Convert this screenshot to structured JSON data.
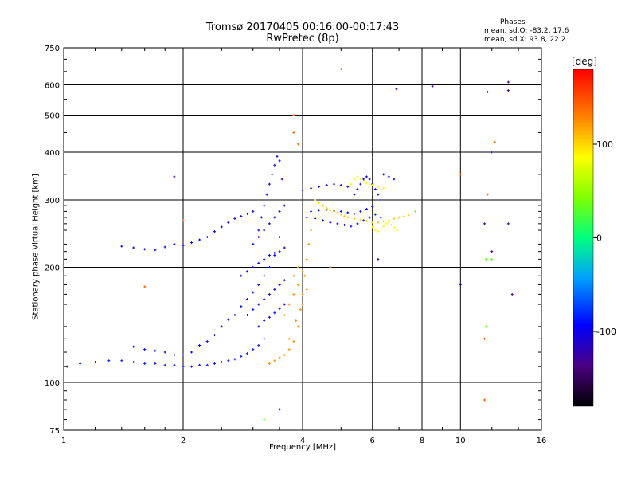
{
  "header": {
    "title_line1": "Tromsø 20170405 00:16:00-00:17:43",
    "title_line2": "RwPretec (8p)"
  },
  "phases": {
    "title": "Phases",
    "line1": "mean, sd,O: -83.2, 17.6",
    "line2": "mean, sd,X:  93.8, 22.2"
  },
  "colorbar": {
    "title": "[deg]",
    "range": [
      -180,
      180
    ],
    "ticks": [
      {
        "value": 100,
        "label": "100"
      },
      {
        "value": 0,
        "label": "0"
      },
      {
        "value": -100,
        "label": "-100"
      }
    ]
  },
  "chart_data": {
    "type": "scatter",
    "xlabel": "Frequency [MHz]",
    "ylabel": "Stationary phase Virtual Height [km]",
    "xscale": "log",
    "yscale": "log",
    "xlim": [
      1,
      16
    ],
    "ylim": [
      75,
      750
    ],
    "grid": true,
    "xticks": [
      1,
      2,
      4,
      6,
      8,
      10,
      16
    ],
    "xtick_labels": [
      "1",
      "2",
      "4",
      "6",
      "8",
      "10",
      "16"
    ],
    "yticks": [
      75,
      100,
      200,
      300,
      400,
      500,
      600,
      750
    ],
    "ytick_labels": [
      "75",
      "100",
      "200",
      "300",
      "400",
      "500",
      "600",
      "750"
    ],
    "series": [
      {
        "phase": -95,
        "points": [
          [
            1.02,
            110
          ],
          [
            1.1,
            112
          ],
          [
            1.2,
            113
          ],
          [
            1.3,
            114
          ],
          [
            1.4,
            114
          ],
          [
            1.5,
            113
          ],
          [
            1.6,
            112
          ],
          [
            1.7,
            112
          ],
          [
            1.8,
            111
          ],
          [
            1.9,
            111
          ],
          [
            2.0,
            110
          ],
          [
            2.1,
            110
          ],
          [
            2.2,
            111
          ],
          [
            2.3,
            111
          ],
          [
            2.4,
            112
          ],
          [
            2.5,
            113
          ],
          [
            2.6,
            114
          ],
          [
            2.7,
            115
          ],
          [
            2.8,
            117
          ],
          [
            2.9,
            119
          ],
          [
            3.0,
            122
          ],
          [
            3.1,
            125
          ],
          [
            3.2,
            130
          ]
        ]
      },
      {
        "phase": -100,
        "points": [
          [
            1.5,
            124
          ],
          [
            1.6,
            122
          ],
          [
            1.7,
            121
          ],
          [
            1.8,
            120
          ],
          [
            1.9,
            118
          ],
          [
            2.0,
            118
          ],
          [
            2.1,
            120
          ],
          [
            2.2,
            125
          ],
          [
            2.3,
            128
          ],
          [
            2.4,
            133
          ],
          [
            2.5,
            140
          ],
          [
            2.6,
            146
          ],
          [
            2.7,
            150
          ],
          [
            2.8,
            158
          ],
          [
            2.9,
            165
          ],
          [
            3.0,
            172
          ],
          [
            3.1,
            180
          ],
          [
            3.2,
            190
          ],
          [
            3.3,
            200
          ],
          [
            3.4,
            215
          ],
          [
            3.5,
            240
          ]
        ]
      },
      {
        "phase": -105,
        "points": [
          [
            1.4,
            227
          ],
          [
            1.5,
            225
          ],
          [
            1.6,
            223
          ],
          [
            1.7,
            222
          ],
          [
            1.8,
            226
          ],
          [
            1.9,
            230
          ],
          [
            2.0,
            228
          ],
          [
            2.1,
            232
          ],
          [
            2.2,
            236
          ],
          [
            2.3,
            240
          ],
          [
            2.4,
            248
          ],
          [
            2.5,
            255
          ],
          [
            2.6,
            262
          ],
          [
            2.7,
            268
          ],
          [
            2.8,
            272
          ],
          [
            2.9,
            276
          ],
          [
            3.0,
            280
          ]
        ]
      },
      {
        "phase": -110,
        "points": [
          [
            3.1,
            250
          ],
          [
            3.15,
            270
          ],
          [
            3.2,
            290
          ],
          [
            3.25,
            310
          ],
          [
            3.3,
            330
          ],
          [
            3.35,
            350
          ],
          [
            3.4,
            370
          ],
          [
            3.45,
            390
          ],
          [
            3.5,
            380
          ],
          [
            3.55,
            340
          ]
        ]
      },
      {
        "phase": -105,
        "points": [
          [
            2.8,
            190
          ],
          [
            2.9,
            195
          ],
          [
            3.0,
            200
          ],
          [
            3.1,
            205
          ],
          [
            3.2,
            210
          ],
          [
            3.3,
            215
          ],
          [
            3.4,
            218
          ],
          [
            3.5,
            220
          ],
          [
            3.6,
            225
          ],
          [
            2.9,
            150
          ],
          [
            3.0,
            155
          ],
          [
            3.1,
            160
          ],
          [
            3.2,
            165
          ],
          [
            3.3,
            170
          ],
          [
            3.4,
            175
          ],
          [
            3.5,
            180
          ],
          [
            3.6,
            185
          ],
          [
            3.1,
            140
          ],
          [
            3.2,
            145
          ],
          [
            3.3,
            148
          ],
          [
            3.4,
            152
          ],
          [
            3.5,
            156
          ],
          [
            3.6,
            160
          ],
          [
            3.0,
            230
          ],
          [
            3.1,
            240
          ],
          [
            3.2,
            250
          ],
          [
            3.3,
            260
          ],
          [
            3.4,
            270
          ],
          [
            3.5,
            280
          ],
          [
            3.6,
            290
          ]
        ]
      },
      {
        "phase": -100,
        "points": [
          [
            4.1,
            270
          ],
          [
            4.3,
            268
          ],
          [
            4.5,
            265
          ],
          [
            4.7,
            262
          ],
          [
            4.9,
            260
          ],
          [
            5.1,
            258
          ],
          [
            5.3,
            256
          ],
          [
            5.5,
            260
          ],
          [
            5.7,
            265
          ],
          [
            5.9,
            270
          ],
          [
            6.1,
            275
          ],
          [
            6.3,
            270
          ],
          [
            4.2,
            280
          ],
          [
            4.4,
            282
          ],
          [
            4.6,
            283
          ],
          [
            4.8,
            282
          ],
          [
            5.0,
            280
          ],
          [
            5.2,
            278
          ],
          [
            5.4,
            276
          ],
          [
            5.6,
            280
          ],
          [
            5.8,
            284
          ],
          [
            6.0,
            288
          ]
        ]
      },
      {
        "phase": -110,
        "points": [
          [
            5.4,
            310
          ],
          [
            5.5,
            320
          ],
          [
            5.6,
            330
          ],
          [
            5.7,
            340
          ],
          [
            5.8,
            345
          ],
          [
            5.9,
            340
          ],
          [
            6.0,
            330
          ],
          [
            6.1,
            320
          ],
          [
            6.2,
            310
          ],
          [
            6.3,
            300
          ],
          [
            4.0,
            318
          ],
          [
            4.2,
            322
          ],
          [
            4.4,
            325
          ],
          [
            4.6,
            328
          ],
          [
            4.8,
            330
          ],
          [
            5.0,
            328
          ],
          [
            5.2,
            325
          ],
          [
            6.4,
            350
          ],
          [
            6.6,
            345
          ],
          [
            6.8,
            340
          ]
        ]
      },
      {
        "phase": 125,
        "points": [
          [
            3.3,
            112
          ],
          [
            3.4,
            114
          ],
          [
            3.5,
            116
          ],
          [
            3.6,
            118
          ],
          [
            3.7,
            122
          ],
          [
            3.8,
            128
          ],
          [
            3.9,
            140
          ],
          [
            3.95,
            155
          ],
          [
            4.0,
            170
          ],
          [
            4.05,
            190
          ],
          [
            4.1,
            210
          ],
          [
            4.15,
            230
          ],
          [
            3.6,
            150
          ],
          [
            3.7,
            160
          ],
          [
            3.8,
            170
          ],
          [
            3.9,
            180
          ],
          [
            4.0,
            195
          ],
          [
            4.2,
            250
          ],
          [
            4.3,
            270
          ],
          [
            4.0,
            160
          ],
          [
            3.9,
            200
          ],
          [
            3.8,
            190
          ],
          [
            4.1,
            175
          ],
          [
            3.7,
            130
          ],
          [
            3.85,
            145
          ]
        ]
      },
      {
        "phase": 105,
        "points": [
          [
            4.3,
            300
          ],
          [
            4.4,
            295
          ],
          [
            4.5,
            290
          ],
          [
            4.6,
            285
          ],
          [
            4.7,
            282
          ],
          [
            4.8,
            280
          ],
          [
            4.9,
            278
          ],
          [
            5.0,
            275
          ],
          [
            5.1,
            272
          ],
          [
            5.2,
            270
          ],
          [
            5.4,
            268
          ],
          [
            5.6,
            266
          ],
          [
            5.8,
            264
          ],
          [
            6.0,
            262
          ],
          [
            6.2,
            262
          ],
          [
            6.4,
            264
          ],
          [
            6.6,
            265
          ],
          [
            6.8,
            268
          ],
          [
            7.0,
            270
          ],
          [
            7.2,
            272
          ],
          [
            7.4,
            274
          ]
        ]
      },
      {
        "phase": 85,
        "points": [
          [
            5.3,
            330
          ],
          [
            5.4,
            340
          ],
          [
            5.5,
            345
          ],
          [
            5.6,
            340
          ],
          [
            5.7,
            335
          ],
          [
            5.8,
            332
          ],
          [
            5.9,
            330
          ],
          [
            6.0,
            328
          ],
          [
            6.2,
            325
          ],
          [
            6.4,
            322
          ],
          [
            6.0,
            255
          ],
          [
            6.1,
            250
          ],
          [
            6.2,
            248
          ],
          [
            6.3,
            252
          ],
          [
            6.4,
            256
          ],
          [
            6.5,
            260
          ],
          [
            6.6,
            262
          ],
          [
            6.7,
            258
          ],
          [
            6.8,
            254
          ],
          [
            6.9,
            250
          ]
        ]
      },
      {
        "phase": 140,
        "points": [
          [
            5.0,
            660
          ],
          [
            3.8,
            500
          ],
          [
            3.8,
            450
          ],
          [
            3.9,
            420
          ],
          [
            12.2,
            425
          ],
          [
            11.7,
            310
          ],
          [
            10.0,
            350
          ],
          [
            4.7,
            200
          ]
        ]
      },
      {
        "phase": 145,
        "points": [
          [
            11.5,
            90
          ],
          [
            11.5,
            130
          ],
          [
            1.6,
            178
          ],
          [
            2.0,
            265
          ]
        ]
      },
      {
        "phase": 30,
        "points": [
          [
            11.6,
            210
          ],
          [
            12.0,
            210
          ],
          [
            11.6,
            140
          ],
          [
            3.2,
            80
          ],
          [
            7.7,
            280
          ]
        ]
      },
      {
        "phase": -130,
        "points": [
          [
            11.7,
            575
          ],
          [
            13.2,
            580
          ],
          [
            13.2,
            610
          ],
          [
            8.5,
            595
          ],
          [
            6.9,
            585
          ],
          [
            12.0,
            400
          ],
          [
            10.0,
            180
          ],
          [
            11.5,
            260
          ],
          [
            13.2,
            260
          ],
          [
            13.5,
            170
          ],
          [
            12.0,
            220
          ],
          [
            6.2,
            210
          ],
          [
            1.9,
            345
          ],
          [
            3.5,
            85
          ]
        ]
      }
    ]
  }
}
